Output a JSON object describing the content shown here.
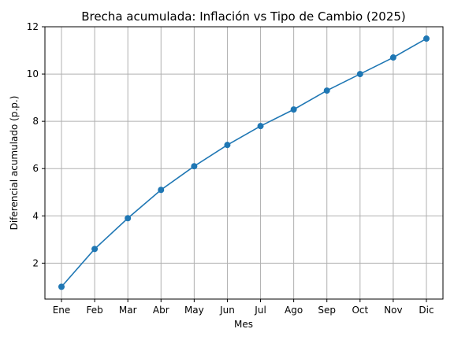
{
  "chart_data": {
    "type": "line",
    "title": "Brecha acumulada: Inflación vs Tipo de Cambio (2025)",
    "xlabel": "Mes",
    "ylabel": "Diferencial acumulado (p.p.)",
    "categories": [
      "Ene",
      "Feb",
      "Mar",
      "Abr",
      "May",
      "Jun",
      "Jul",
      "Ago",
      "Sep",
      "Oct",
      "Nov",
      "Dic"
    ],
    "series": [
      {
        "values": [
          1.0,
          2.6,
          3.9,
          5.1,
          6.1,
          7.0,
          7.8,
          8.5,
          9.3,
          10.0,
          10.7,
          11.5
        ]
      }
    ],
    "yticks": [
      2,
      4,
      6,
      8,
      10,
      12
    ],
    "ylim": [
      0.48,
      12.0
    ],
    "grid": true,
    "marker": "circle",
    "colors": {
      "line": "#1f77b4",
      "grid": "#b0b0b0",
      "axes": "#000000"
    }
  }
}
